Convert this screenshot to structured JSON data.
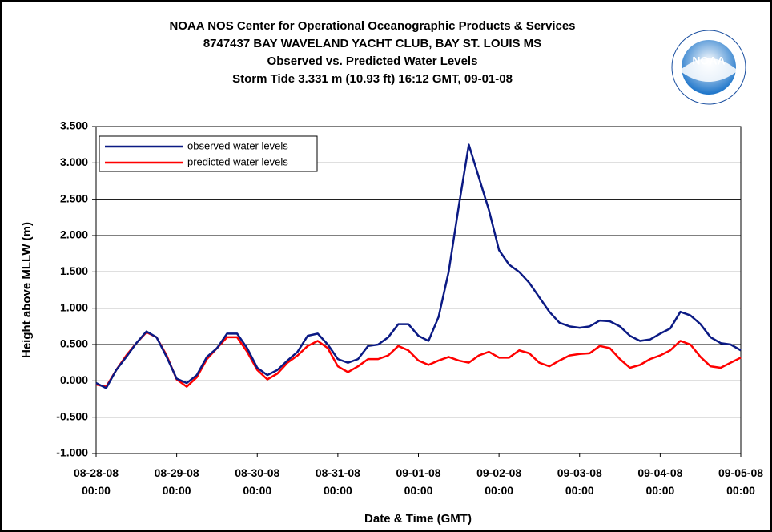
{
  "chart_data": {
    "type": "line",
    "title_lines": [
      "NOAA NOS Center for Operational Oceanographic Products & Services",
      "8747437  BAY WAVELAND YACHT CLUB, BAY ST. LOUIS MS",
      "Observed vs. Predicted Water Levels",
      "Storm Tide 3.331 m (10.93 ft) 16:12 GMT, 09-01-08"
    ],
    "logo_text": "NOAA",
    "x_label": "Date & Time (GMT)",
    "y_label": "Height above MLLW (m)",
    "legend": "top-left",
    "grid": true,
    "xlim": [
      "2008-08-28T00:00",
      "2008-09-05T00:00"
    ],
    "xticks": [
      {
        "value": "2008-08-28T00:00",
        "label": "08-28-08\n00:00"
      },
      {
        "value": "2008-08-29T00:00",
        "label": "08-29-08\n00:00"
      },
      {
        "value": "2008-08-30T00:00",
        "label": "08-30-08\n00:00"
      },
      {
        "value": "2008-08-31T00:00",
        "label": "08-31-08\n00:00"
      },
      {
        "value": "2008-09-01T00:00",
        "label": "09-01-08\n00:00"
      },
      {
        "value": "2008-09-02T00:00",
        "label": "09-02-08\n00:00"
      },
      {
        "value": "2008-09-03T00:00",
        "label": "09-03-08\n00:00"
      },
      {
        "value": "2008-09-04T00:00",
        "label": "09-04-08\n00:00"
      },
      {
        "value": "2008-09-05T00:00",
        "label": "09-05-08\n00:00"
      }
    ],
    "ylim": [
      -1.0,
      3.5
    ],
    "yticks": [
      {
        "value": -1.0,
        "label": "-1.000"
      },
      {
        "value": -0.5,
        "label": "-0.500"
      },
      {
        "value": 0,
        "label": "0.000"
      },
      {
        "value": 0.5,
        "label": "0.500"
      },
      {
        "value": 1.0,
        "label": "1.000"
      },
      {
        "value": 1.5,
        "label": "1.500"
      },
      {
        "value": 2.0,
        "label": "2.000"
      },
      {
        "value": 2.5,
        "label": "2.500"
      },
      {
        "value": 3.0,
        "label": "3.000"
      },
      {
        "value": 3.5,
        "label": "3.500"
      }
    ],
    "x": [
      "2008-08-28T00:00",
      "2008-08-28T03:00",
      "2008-08-28T06:00",
      "2008-08-28T09:00",
      "2008-08-28T12:00",
      "2008-08-28T15:00",
      "2008-08-28T18:00",
      "2008-08-28T21:00",
      "2008-08-29T00:00",
      "2008-08-29T03:00",
      "2008-08-29T06:00",
      "2008-08-29T09:00",
      "2008-08-29T12:00",
      "2008-08-29T15:00",
      "2008-08-29T18:00",
      "2008-08-29T21:00",
      "2008-08-30T00:00",
      "2008-08-30T03:00",
      "2008-08-30T06:00",
      "2008-08-30T09:00",
      "2008-08-30T12:00",
      "2008-08-30T15:00",
      "2008-08-30T18:00",
      "2008-08-30T21:00",
      "2008-08-31T00:00",
      "2008-08-31T03:00",
      "2008-08-31T06:00",
      "2008-08-31T09:00",
      "2008-08-31T12:00",
      "2008-08-31T15:00",
      "2008-08-31T18:00",
      "2008-08-31T21:00",
      "2008-09-01T00:00",
      "2008-09-01T03:00",
      "2008-09-01T06:00",
      "2008-09-01T09:00",
      "2008-09-01T12:00",
      "2008-09-01T15:00",
      "2008-09-01T18:00",
      "2008-09-01T21:00",
      "2008-09-02T00:00",
      "2008-09-02T03:00",
      "2008-09-02T06:00",
      "2008-09-02T09:00",
      "2008-09-02T12:00",
      "2008-09-02T15:00",
      "2008-09-02T18:00",
      "2008-09-02T21:00",
      "2008-09-03T00:00",
      "2008-09-03T03:00",
      "2008-09-03T06:00",
      "2008-09-03T09:00",
      "2008-09-03T12:00",
      "2008-09-03T15:00",
      "2008-09-03T18:00",
      "2008-09-03T21:00",
      "2008-09-04T00:00",
      "2008-09-04T03:00",
      "2008-09-04T06:00",
      "2008-09-04T09:00",
      "2008-09-04T12:00",
      "2008-09-04T15:00",
      "2008-09-04T18:00",
      "2008-09-04T21:00",
      "2008-09-05T00:00"
    ],
    "series": [
      {
        "name": "observed water levels",
        "color": "#0b1a84",
        "values": [
          -0.03,
          -0.1,
          0.15,
          0.33,
          0.52,
          0.68,
          0.6,
          0.33,
          0.03,
          -0.03,
          0.08,
          0.33,
          0.45,
          0.65,
          0.65,
          0.45,
          0.18,
          0.08,
          0.15,
          0.28,
          0.4,
          0.62,
          0.65,
          0.5,
          0.3,
          0.25,
          0.3,
          0.48,
          0.5,
          0.6,
          0.78,
          0.78,
          0.62,
          0.55,
          0.88,
          1.5,
          2.4,
          3.25,
          2.8,
          2.35,
          1.8,
          1.6,
          1.5,
          1.35,
          1.15,
          0.95,
          0.8,
          0.75,
          0.73,
          0.75,
          0.83,
          0.82,
          0.75,
          0.62,
          0.55,
          0.57,
          0.65,
          0.72,
          0.95,
          0.9,
          0.78,
          0.6,
          0.52,
          0.5,
          0.42
        ]
      },
      {
        "name": "predicted water levels",
        "color": "#ff0000",
        "values": [
          -0.05,
          -0.08,
          0.15,
          0.35,
          0.52,
          0.67,
          0.6,
          0.35,
          0.02,
          -0.08,
          0.05,
          0.3,
          0.45,
          0.6,
          0.6,
          0.4,
          0.15,
          0.02,
          0.1,
          0.25,
          0.35,
          0.48,
          0.55,
          0.45,
          0.2,
          0.12,
          0.2,
          0.3,
          0.3,
          0.35,
          0.48,
          0.42,
          0.28,
          0.22,
          0.28,
          0.33,
          0.28,
          0.25,
          0.35,
          0.4,
          0.32,
          0.32,
          0.42,
          0.38,
          0.25,
          0.2,
          0.28,
          0.35,
          0.37,
          0.38,
          0.48,
          0.45,
          0.3,
          0.18,
          0.22,
          0.3,
          0.35,
          0.42,
          0.55,
          0.5,
          0.33,
          0.2,
          0.18,
          0.25,
          0.32
        ]
      }
    ]
  }
}
